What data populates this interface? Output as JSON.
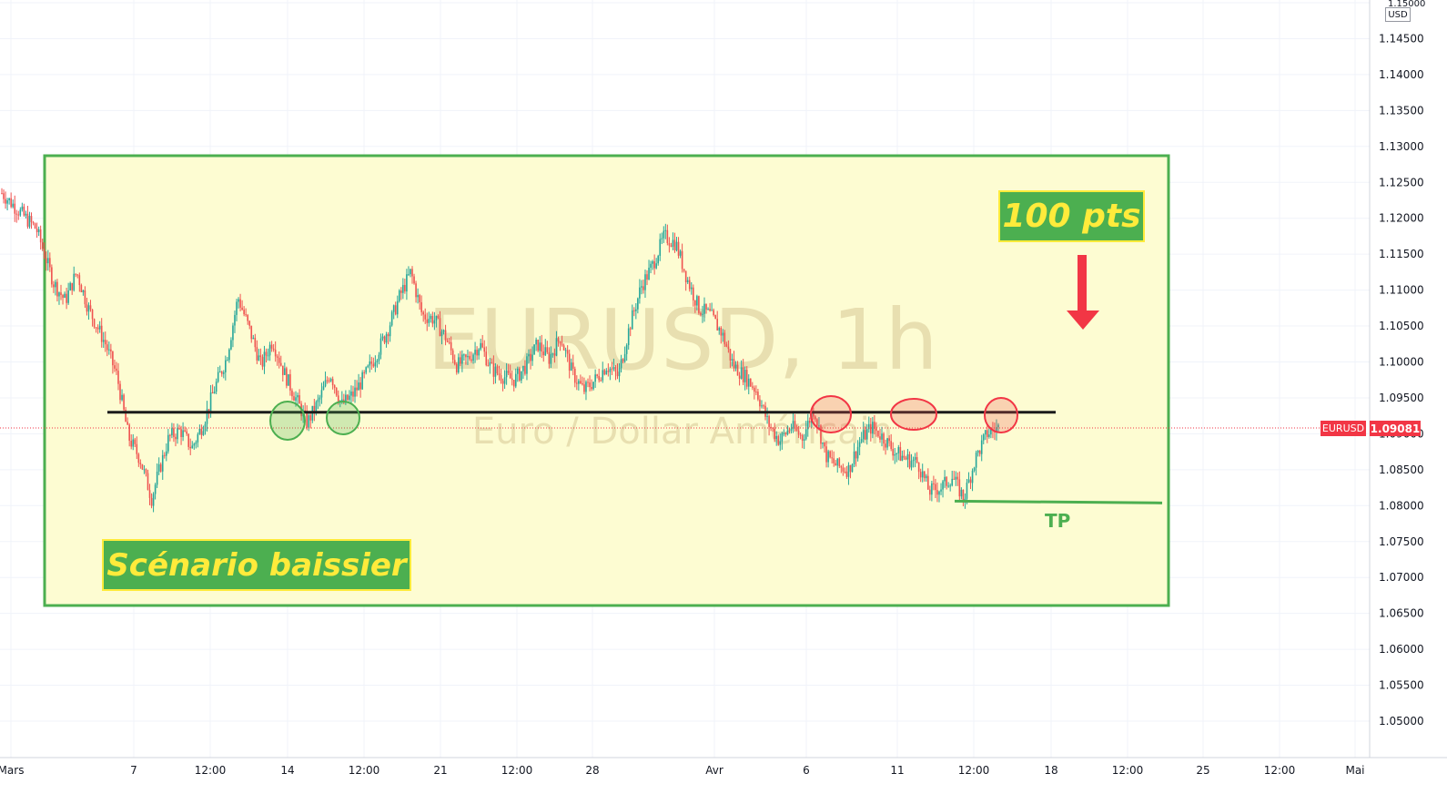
{
  "chart_data": {
    "type": "candlestick",
    "symbol": "EURUSD",
    "timeframe": "1h",
    "watermark_title": "EURUSD, 1h",
    "watermark_subtitle": "Euro / Dollar Américain",
    "currency": "USD",
    "last_price": "1.09081",
    "ylim": [
      1.0475,
      1.15
    ],
    "y_ticks": [
      "1.15000",
      "1.14500",
      "1.14000",
      "1.13500",
      "1.13000",
      "1.12500",
      "1.12000",
      "1.11500",
      "1.11000",
      "1.10500",
      "1.10000",
      "1.09500",
      "1.09000",
      "1.08500",
      "1.08000",
      "1.07500",
      "1.07000",
      "1.06500",
      "1.06000",
      "1.05500",
      "1.05000"
    ],
    "x_ticks": [
      "Mars",
      "7",
      "12:00",
      "14",
      "12:00",
      "21",
      "12:00",
      "28",
      "Avr",
      "6",
      "11",
      "12:00",
      "18",
      "12:00",
      "25",
      "12:00",
      "Mai"
    ],
    "price_path": [
      [
        0,
        1.1235
      ],
      [
        3,
        1.121
      ],
      [
        6,
        1.1185
      ],
      [
        9,
        1.111
      ],
      [
        11,
        1.1085
      ],
      [
        13,
        1.1125
      ],
      [
        15,
        1.1075
      ],
      [
        18,
        1.1025
      ],
      [
        20,
        1.098
      ],
      [
        22,
        1.0895
      ],
      [
        24,
        1.0865
      ],
      [
        26,
        1.081
      ],
      [
        27,
        1.084
      ],
      [
        29,
        1.0895
      ],
      [
        31,
        1.0905
      ],
      [
        33,
        1.088
      ],
      [
        35,
        1.0915
      ],
      [
        37,
        1.0965
      ],
      [
        39,
        1.1005
      ],
      [
        41,
        1.109
      ],
      [
        43,
        1.1045
      ],
      [
        45,
        1.0995
      ],
      [
        47,
        1.103
      ],
      [
        49,
        1.0985
      ],
      [
        51,
        1.095
      ],
      [
        53,
        1.0915
      ],
      [
        55,
        1.0945
      ],
      [
        57,
        1.0985
      ],
      [
        59,
        1.094
      ],
      [
        61,
        1.0955
      ],
      [
        63,
        1.098
      ],
      [
        65,
        1.101
      ],
      [
        67,
        1.1045
      ],
      [
        69,
        1.109
      ],
      [
        71,
        1.1125
      ],
      [
        73,
        1.1065
      ],
      [
        75,
        1.106
      ],
      [
        77,
        1.1035
      ],
      [
        79,
        1.0995
      ],
      [
        81,
        1.1005
      ],
      [
        83,
        1.1025
      ],
      [
        85,
        1.099
      ],
      [
        87,
        1.098
      ],
      [
        89,
        1.0975
      ],
      [
        91,
        1.0995
      ],
      [
        93,
        1.1025
      ],
      [
        95,
        1.1005
      ],
      [
        97,
        1.1035
      ],
      [
        99,
        1.0985
      ],
      [
        101,
        1.096
      ],
      [
        103,
        1.0975
      ],
      [
        105,
        1.0995
      ],
      [
        107,
        1.098
      ],
      [
        109,
        1.105
      ],
      [
        111,
        1.1105
      ],
      [
        113,
        1.1135
      ],
      [
        115,
        1.1175
      ],
      [
        117,
        1.1165
      ],
      [
        119,
        1.1115
      ],
      [
        121,
        1.1075
      ],
      [
        123,
        1.1065
      ],
      [
        125,
        1.104
      ],
      [
        127,
        1.0995
      ],
      [
        129,
        1.098
      ],
      [
        131,
        1.096
      ],
      [
        133,
        1.0915
      ],
      [
        135,
        1.089
      ],
      [
        137,
        1.091
      ],
      [
        139,
        1.0895
      ],
      [
        141,
        1.0935
      ],
      [
        143,
        1.087
      ],
      [
        145,
        1.0855
      ],
      [
        147,
        1.085
      ],
      [
        149,
        1.089
      ],
      [
        151,
        1.091
      ],
      [
        153,
        1.0895
      ],
      [
        155,
        1.0875
      ],
      [
        157,
        1.0865
      ],
      [
        159,
        1.086
      ],
      [
        161,
        1.082
      ],
      [
        163,
        1.0825
      ],
      [
        165,
        1.084
      ],
      [
        167,
        1.081
      ],
      [
        169,
        1.0865
      ],
      [
        171,
        1.09
      ],
      [
        173,
        1.0908
      ]
    ],
    "support_resistance_level": 1.093,
    "take_profit_level": 1.0805,
    "tp_label": "TP",
    "target_label": "100 pts",
    "scenario_label": "Scénario baissier",
    "green_circle_count": 2,
    "red_circle_count": 3
  },
  "colors": {
    "box_fill": "#fdfcd2",
    "box_border": "#4caf50",
    "up_candle": "#26a69a",
    "down_candle": "#ef5350",
    "level_line": "#1b1b1b",
    "tp_line": "#4caf50",
    "arrow": "#f23645",
    "badge_bg": "#4caf50",
    "badge_text": "#ffeb3b"
  }
}
